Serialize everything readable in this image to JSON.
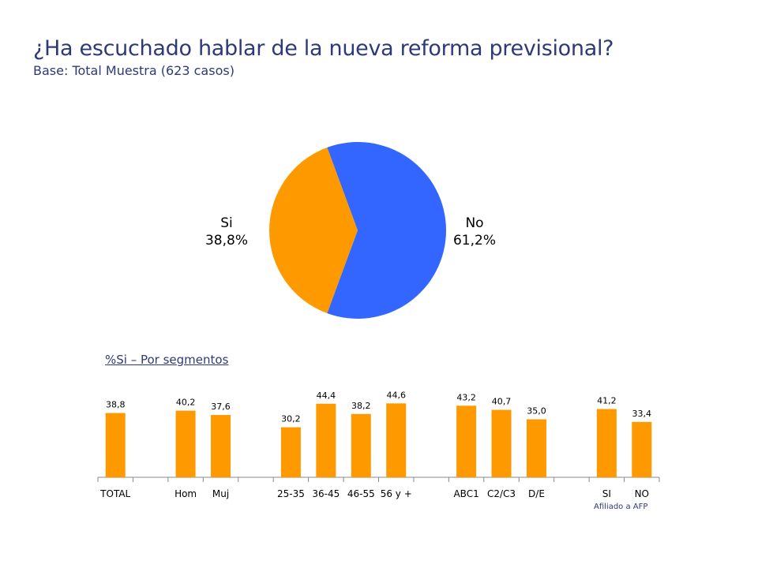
{
  "header": {
    "title": "¿Ha escuchado hablar de la nueva reforma previsional?",
    "subtitle": "Base: Total Muestra (623 casos)"
  },
  "segments_title": "%Si – Por segmentos",
  "afp_note": "Afiliado a AFP",
  "colors": {
    "si": "#ff9900",
    "no": "#3366ff",
    "axis": "#888888",
    "title": "#2e3a78"
  },
  "pie_labels": {
    "si_name": "Si",
    "si_value": "38,8%",
    "no_name": "No",
    "no_value": "61,2%"
  },
  "chart_data": [
    {
      "type": "pie",
      "title": "¿Ha escuchado hablar de la nueva reforma previsional?",
      "categories": [
        "Si",
        "No"
      ],
      "values": [
        38.8,
        61.2
      ],
      "value_labels": [
        "38,8%",
        "61,2%"
      ]
    },
    {
      "type": "bar",
      "title": "%Si – Por segmentos",
      "categories": [
        "TOTAL",
        "",
        "Hom",
        "Muj",
        "",
        "25-35",
        "36-45",
        "46-55",
        "56 y +",
        "",
        "ABC1",
        "C2/C3",
        "D/E",
        "",
        "SI",
        "NO"
      ],
      "values": [
        38.8,
        null,
        40.2,
        37.6,
        null,
        30.2,
        44.4,
        38.2,
        44.6,
        null,
        43.2,
        40.7,
        35.0,
        null,
        41.2,
        33.4
      ],
      "value_labels": [
        "38,8",
        "",
        "40,2",
        "37,6",
        "",
        "30,2",
        "44,4",
        "38,2",
        "44,6",
        "",
        "43,2",
        "40,7",
        "35,0",
        "",
        "41,2",
        "33,4"
      ],
      "ylim": [
        0,
        100
      ],
      "grid": false,
      "legend": "none",
      "group_label": "Afiliado a AFP"
    }
  ]
}
